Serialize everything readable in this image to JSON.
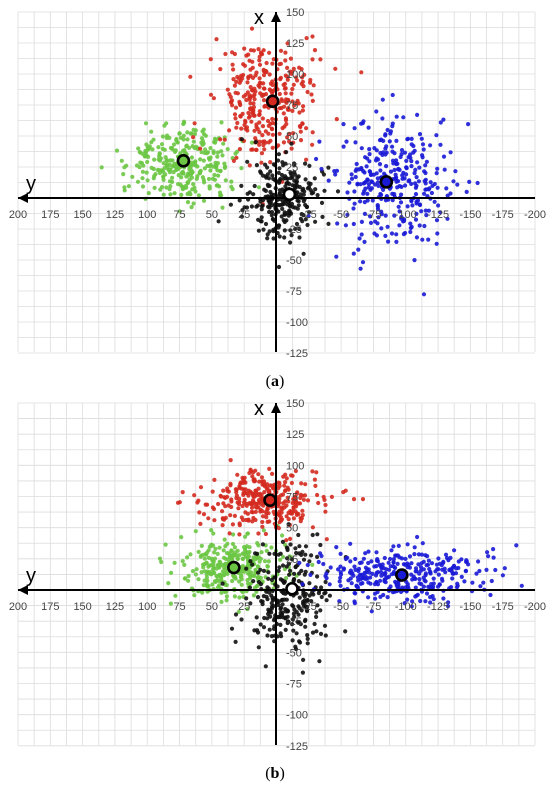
{
  "chart_data": [
    {
      "type": "scatter",
      "panel_label": "a",
      "xlabel": "y",
      "ylabel": "x",
      "x_axis": {
        "min": -200,
        "max": 200,
        "reversed": true,
        "ticks": [
          200,
          175,
          150,
          125,
          100,
          75,
          50,
          25,
          -25,
          -50,
          -75,
          -100,
          -125,
          -150,
          -175,
          -200
        ]
      },
      "y_axis": {
        "min": -125,
        "max": 150,
        "ticks": [
          150,
          125,
          100,
          75,
          50,
          25,
          -25,
          -50,
          -75,
          -100,
          -125
        ]
      },
      "grid": true,
      "series": [
        {
          "color": "#6cc644",
          "cluster": {
            "cx": 72,
            "cy": 27,
            "sx": 20,
            "sy": 15,
            "n": 320
          },
          "centroid": [
            72,
            30
          ]
        },
        {
          "color": "#d42a1f",
          "cluster": {
            "cx": 8,
            "cy": 78,
            "sx": 20,
            "sy": 24,
            "n": 320
          },
          "centroid": [
            3,
            78
          ]
        },
        {
          "color": "#111111",
          "cluster": {
            "cx": -5,
            "cy": 2,
            "sx": 14,
            "sy": 16,
            "n": 260
          },
          "centroid": [
            -10,
            3
          ]
        },
        {
          "color": "#1a1ad6",
          "cluster": {
            "cx": -90,
            "cy": 15,
            "sx": 24,
            "sy": 28,
            "n": 320
          },
          "centroid": [
            -85,
            13
          ]
        }
      ]
    },
    {
      "type": "scatter",
      "panel_label": "b",
      "xlabel": "y",
      "ylabel": "x",
      "x_axis": {
        "min": -200,
        "max": 200,
        "reversed": true,
        "ticks": [
          200,
          175,
          150,
          125,
          100,
          75,
          50,
          25,
          -25,
          -50,
          -75,
          -100,
          -125,
          -150,
          -175,
          -200
        ]
      },
      "y_axis": {
        "min": -125,
        "max": 150,
        "ticks": [
          150,
          125,
          100,
          75,
          50,
          25,
          -25,
          -50,
          -75,
          -100,
          -125
        ]
      },
      "grid": true,
      "series": [
        {
          "color": "#6cc644",
          "cluster": {
            "cx": 35,
            "cy": 17,
            "sx": 20,
            "sy": 12,
            "n": 320
          },
          "centroid": [
            33,
            18
          ]
        },
        {
          "color": "#d42a1f",
          "cluster": {
            "cx": 10,
            "cy": 72,
            "sx": 24,
            "sy": 12,
            "n": 320
          },
          "centroid": [
            5,
            72
          ]
        },
        {
          "color": "#111111",
          "cluster": {
            "cx": -10,
            "cy": -5,
            "sx": 16,
            "sy": 20,
            "n": 260
          },
          "centroid": [
            -12,
            1
          ]
        },
        {
          "color": "#1a1ad6",
          "cluster": {
            "cx": -100,
            "cy": 12,
            "sx": 32,
            "sy": 11,
            "n": 340
          },
          "centroid": [
            -97,
            12
          ]
        }
      ]
    }
  ],
  "captions": {
    "a": "(a)",
    "b": "(b)"
  }
}
